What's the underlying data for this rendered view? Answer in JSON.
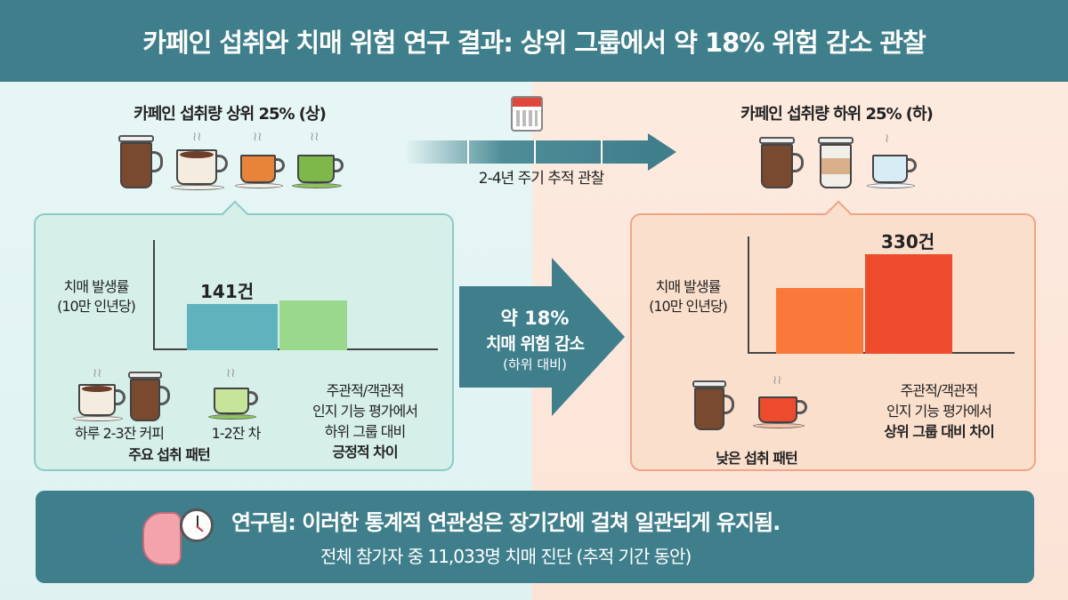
{
  "title": "카페인 섭취와 치매 위험 연구 결과: 상위 그룹에서 약 18% 위험 감소 관찰",
  "timeline": {
    "label": "2-4년 주기 추적 관찰",
    "icon": "calendar-icon"
  },
  "high_group": {
    "heading": "카페인 섭취량 상위 25% (상)",
    "cup_colors": [
      "#7a4a30",
      "#6b3f2a",
      "#e8843a",
      "#7fb84a"
    ],
    "chart_ylabel_1": "치매 발생률",
    "chart_ylabel_2": "(10만 인년당)",
    "bar_label": "141건",
    "bar_colors": [
      "#5fb3bd",
      "#9ad88c"
    ],
    "coffee_label": "하루 2-3잔 커피",
    "tea_label": "1-2잔 차",
    "pattern_label": "주요 섭취 패턴",
    "note_1": "주관적/객관적",
    "note_2": "인지 기능 평가에서",
    "note_3": "하위 그룹 대비",
    "note_4": "긍정적 차이"
  },
  "center_arrow": {
    "line1": "약 18%",
    "line2": "치매 위험 감소",
    "line3": "(하위 대비)"
  },
  "low_group": {
    "heading": "카페인 섭취량 하위 25% (하)",
    "chart_ylabel_1": "치매 발생률",
    "chart_ylabel_2": "(10만 인년당)",
    "bar_label": "330건",
    "bar_colors": [
      "#f9783a",
      "#ee4a2c"
    ],
    "pattern_label": "낮은 섭취 패턴",
    "note_1": "주관적/객관적",
    "note_2": "인지 기능 평가에서",
    "note_3": "상위 그룹 대비 차이"
  },
  "banner": {
    "line1": "연구팀: 이러한 통계적 연관성은 장기간에 걸쳐 일관되게 유지됨.",
    "line2": "전체 참가자 중 11,033명 치매 진단 (추적 기간 동안)"
  },
  "colors": {
    "teal": "#3f7f8c",
    "left_bg": "#e4f5f4",
    "right_bg": "#fdeadf"
  }
}
